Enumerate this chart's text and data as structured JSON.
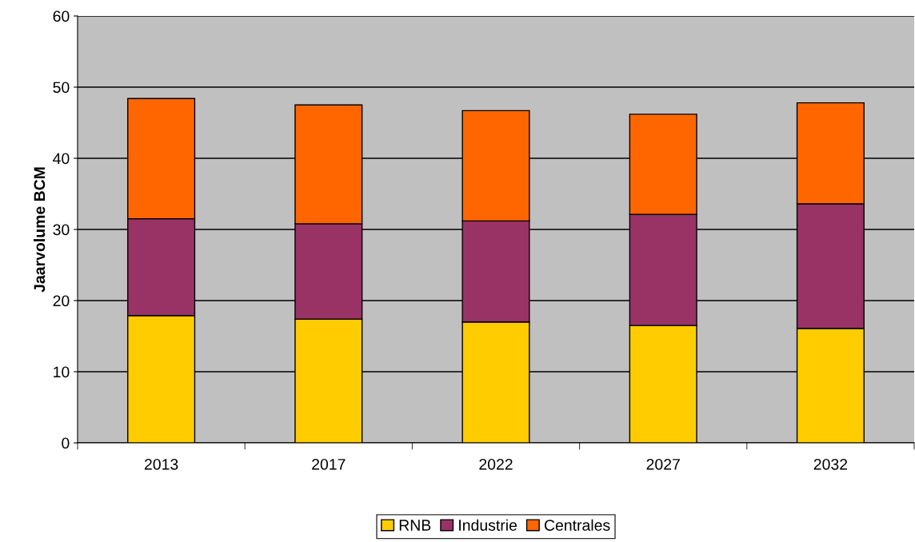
{
  "chart_data": {
    "type": "bar",
    "stacked": true,
    "ylabel": "Jaarvolume BCM",
    "categories": [
      "2013",
      "2017",
      "2022",
      "2027",
      "2032"
    ],
    "series": [
      {
        "name": "RNB",
        "color": "#ffcc00",
        "values": [
          17.9,
          17.4,
          17.0,
          16.5,
          16.1
        ]
      },
      {
        "name": "Industrie",
        "color": "#993366",
        "values": [
          13.6,
          13.4,
          14.2,
          15.6,
          17.5
        ]
      },
      {
        "name": "Centrales",
        "color": "#ff6600",
        "values": [
          16.9,
          16.7,
          15.5,
          14.1,
          14.2
        ]
      }
    ],
    "ylim": [
      0,
      60
    ],
    "yticks": [
      0,
      10,
      20,
      30,
      40,
      50,
      60
    ],
    "grid": "y",
    "legend": "bottom"
  }
}
